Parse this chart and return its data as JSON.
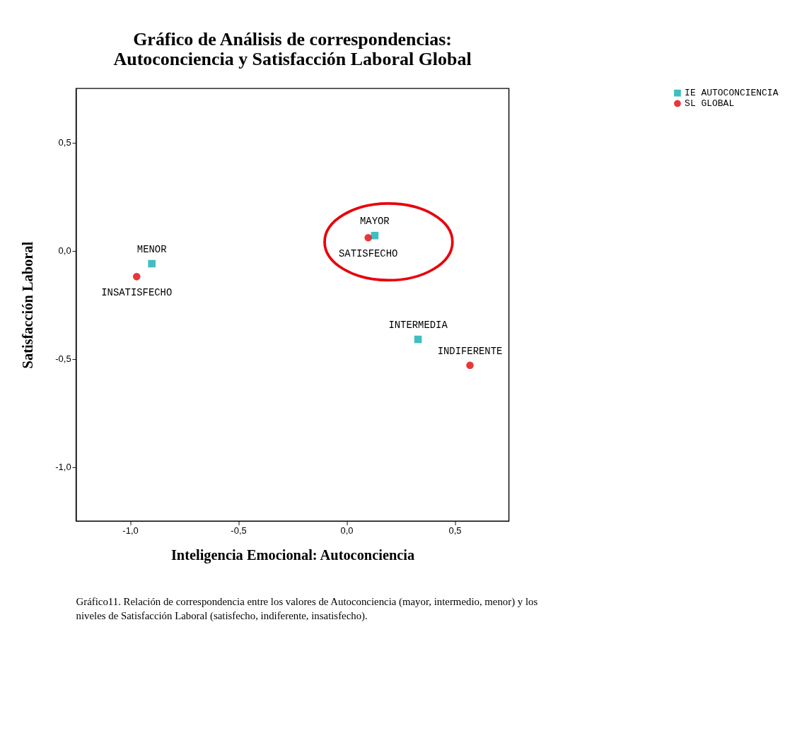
{
  "chart_data": {
    "type": "scatter",
    "title": "Gráfico de Análisis de correspondencias:\nAutoconciencia y Satisfacción Laboral Global",
    "xlabel": "Inteligencia Emocional: Autoconciencia",
    "ylabel": "Satisfacción Laboral",
    "series": [
      {
        "name": "IE AUTOCONCIENCIA",
        "color": "#3fbfbf",
        "marker": "square",
        "x": [
          -0.9,
          0.13,
          0.33
        ],
        "values": [
          -0.06,
          0.07,
          -0.41
        ]
      },
      {
        "name": "SL GLOBAL",
        "color": "#e8373a",
        "marker": "circle",
        "x": [
          -0.97,
          0.1,
          0.57
        ],
        "values": [
          -0.12,
          0.06,
          -0.53
        ]
      }
    ],
    "annotations": [
      {
        "text": "MENOR",
        "x": -0.9,
        "y": -0.06
      },
      {
        "text": "MAYOR",
        "x": 0.13,
        "y": 0.07
      },
      {
        "text": "INTERMEDIA",
        "x": 0.33,
        "y": -0.41
      },
      {
        "text": "INSATISFECHO",
        "x": -0.97,
        "y": -0.12
      },
      {
        "text": "SATISFECHO",
        "x": 0.1,
        "y": 0.06
      },
      {
        "text": "INDIFERENTE",
        "x": 0.57,
        "y": -0.53
      },
      "Gráfico11. Relación de correspondencia entre los valores de  Autoconciencia (mayor, intermedio, menor) y los niveles de Satisfacción Laboral (satisfecho, indiferente, insatisfecho)."
    ],
    "xlim": [
      -1.25,
      0.75
    ],
    "ylim": [
      -1.25,
      0.75
    ],
    "xticks": [
      {
        "value": -1.0,
        "label": "-1,0"
      },
      {
        "value": -0.5,
        "label": "-0,5"
      },
      {
        "value": 0.0,
        "label": "0,0"
      },
      {
        "value": 0.5,
        "label": "0,5"
      }
    ],
    "yticks": [
      {
        "value": 0.5,
        "label": "0,5"
      },
      {
        "value": 0.0,
        "label": "0,0"
      },
      {
        "value": -0.5,
        "label": "-0,5"
      },
      {
        "value": -1.0,
        "label": "-1,0"
      }
    ],
    "grid": false,
    "legend": "top right"
  }
}
